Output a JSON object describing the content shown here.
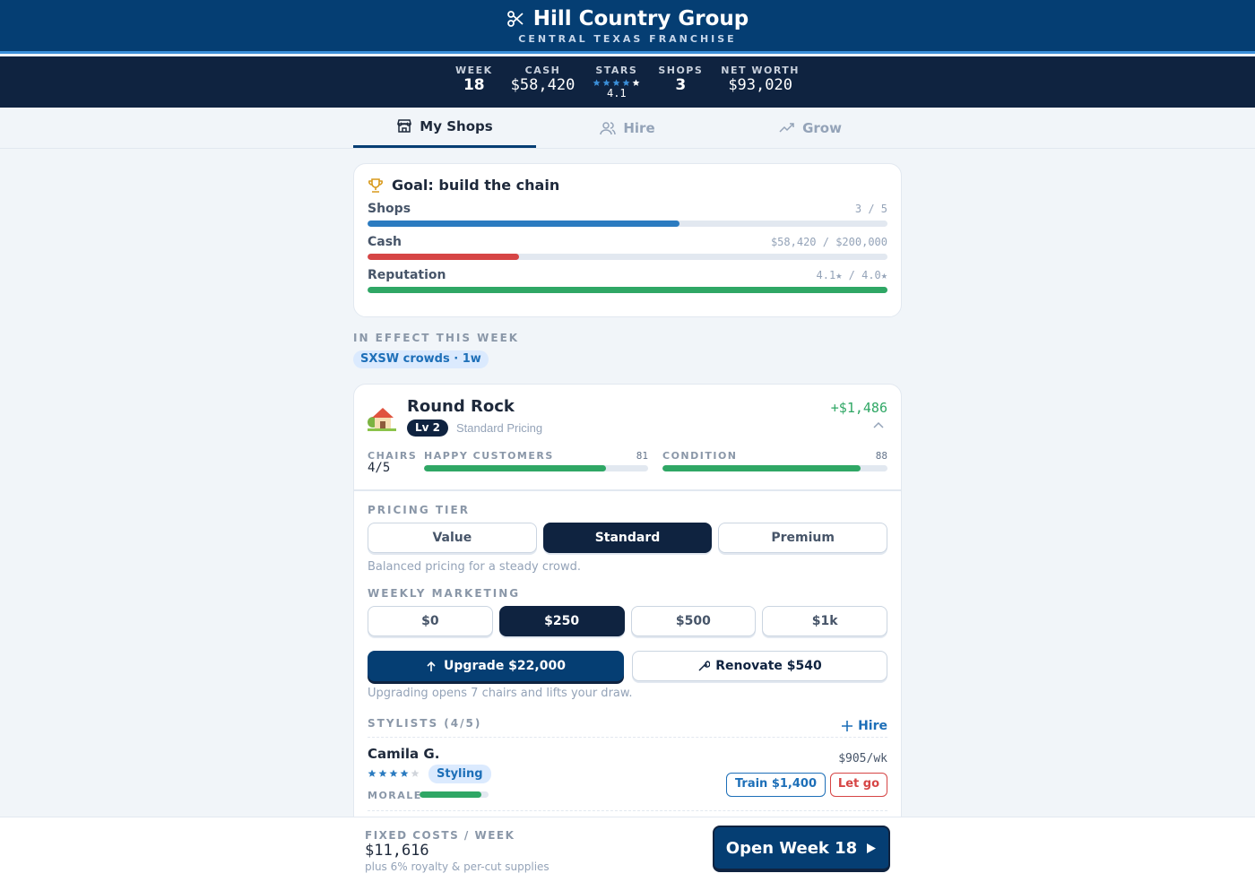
{
  "header": {
    "title": "Hill Country Group",
    "subtitle": "CENTRAL TEXAS FRANCHISE"
  },
  "stats": [
    {
      "label": "WEEK",
      "value": 18
    },
    {
      "label": "CASH",
      "value": "$58,420"
    },
    {
      "label": "STARS",
      "value": 4.1
    },
    {
      "label": "SHOPS",
      "value": 3
    },
    {
      "label": "NET WORTH",
      "value": "$93,020"
    }
  ],
  "tabs": {
    "items": [
      "My Shops",
      "Hire",
      "Grow"
    ],
    "active": 0
  },
  "goal": {
    "title": "Goal: build the chain",
    "rows": [
      {
        "label": "Shops",
        "progress": "3 / 5",
        "current": 3,
        "target": 5,
        "color": "#2b7bc0"
      },
      {
        "label": "Cash",
        "progress": "$58,420 / $200,000",
        "current": 58420,
        "target": 200000,
        "color": "#d64545"
      },
      {
        "label": "Reputation",
        "progress": "4.1★ / 4.0★",
        "current": 4.1,
        "target": 4.0,
        "color": "#2fa765"
      }
    ]
  },
  "effects": {
    "heading": "IN EFFECT THIS WEEK",
    "items": [
      "SXSW crowds · 1w"
    ]
  },
  "shop": {
    "name": "Round Rock",
    "level": "Lv 2",
    "pricing_label": "Standard Pricing",
    "profit": "+$1,486",
    "chairs_label": "CHAIRS",
    "chairs": "4/5",
    "happy_label": "HAPPY CUSTOMERS",
    "happy": 81,
    "condition_label": "CONDITION",
    "condition": 88,
    "pricing_heading": "PRICING TIER",
    "pricing_options": [
      "Value",
      "Standard",
      "Premium"
    ],
    "pricing_selected": 1,
    "pricing_note": "Balanced pricing for a steady crowd.",
    "marketing_heading": "WEEKLY MARKETING",
    "marketing_options": [
      "$0",
      "$250",
      "$500",
      "$1k"
    ],
    "marketing_selected": 1,
    "upgrade": "Upgrade $22,000",
    "renovate": "Renovate $540",
    "upgrade_note": "Upgrading opens 7 chairs and lifts your draw.",
    "stylists_heading": "STYLISTS (4/5)",
    "hire": "Hire",
    "stylists": [
      {
        "name": "Camila G.",
        "stars": 4,
        "specialty": "Styling",
        "wage": "$905/wk",
        "morale_label": "MORALE",
        "morale": 89,
        "train": "Train $1,400",
        "let_go": "Let go"
      }
    ]
  },
  "footer": {
    "label": "FIXED COSTS / WEEK",
    "value": "$11,616",
    "note": "plus 6% royalty & per-cut supplies",
    "button": "Open Week 18"
  }
}
